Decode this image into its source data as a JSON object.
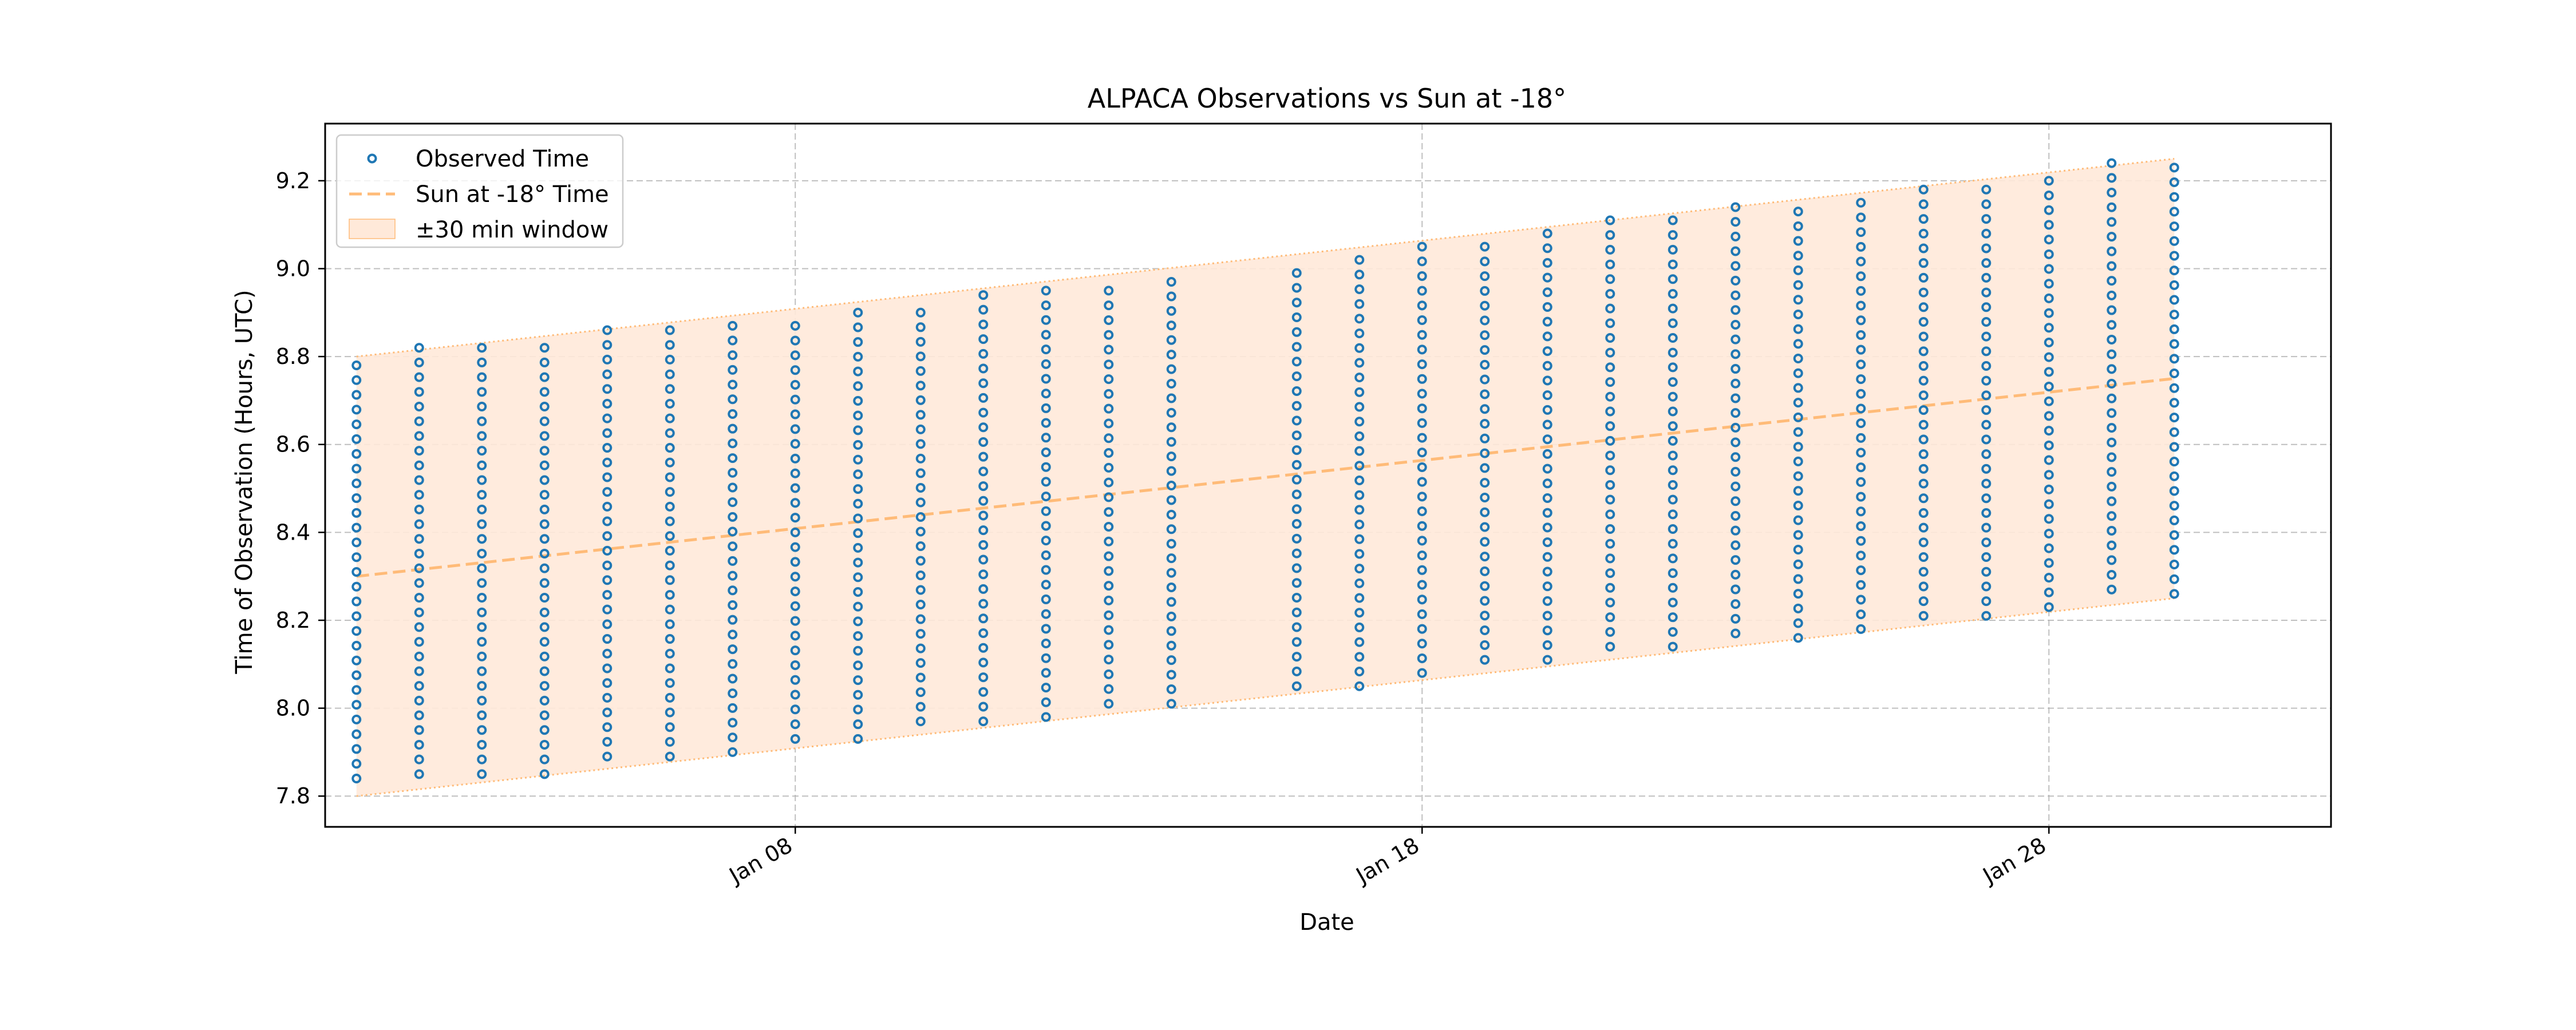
{
  "chart_data": {
    "type": "scatter",
    "title": "ALPACA Observations vs Sun at -18°",
    "xlabel": "Date",
    "ylabel": "Time of Observation (Hours, UTC)",
    "x_axis_type": "date",
    "xlim": [
      "2025-01-00T12",
      "2025-01-32T12"
    ],
    "ylim": [
      7.73,
      9.33
    ],
    "x_ticks": [
      {
        "date": "2025-01-08",
        "label": "Jan 08"
      },
      {
        "date": "2025-01-18",
        "label": "Jan 18"
      },
      {
        "date": "2025-01-28",
        "label": "Jan 28"
      }
    ],
    "y_ticks": [
      {
        "value": 7.8,
        "label": "7.8"
      },
      {
        "value": 8.0,
        "label": "8.0"
      },
      {
        "value": 8.2,
        "label": "8.2"
      },
      {
        "value": 8.4,
        "label": "8.4"
      },
      {
        "value": 8.6,
        "label": "8.6"
      },
      {
        "value": 8.8,
        "label": "8.8"
      },
      {
        "value": 9.0,
        "label": "9.0"
      },
      {
        "value": 9.2,
        "label": "9.2"
      }
    ],
    "grid": true,
    "legend_position": "top-left",
    "window_half_width_hours": 0.5,
    "observation_cadence_hours": 0.0333,
    "series": [
      {
        "name": "Observed Time",
        "kind": "scatter",
        "marker": "hollow-circle",
        "color": "#1f77b4",
        "nights": [
          {
            "date": "2025-01-01",
            "start": 7.84,
            "end": 8.78
          },
          {
            "date": "2025-01-02",
            "start": 7.85,
            "end": 8.82
          },
          {
            "date": "2025-01-03",
            "start": 7.85,
            "end": 8.82
          },
          {
            "date": "2025-01-04",
            "start": 7.85,
            "end": 8.82
          },
          {
            "date": "2025-01-05",
            "start": 7.89,
            "end": 8.86
          },
          {
            "date": "2025-01-06",
            "start": 7.89,
            "end": 8.86
          },
          {
            "date": "2025-01-07",
            "start": 7.9,
            "end": 8.87
          },
          {
            "date": "2025-01-08",
            "start": 7.93,
            "end": 8.87
          },
          {
            "date": "2025-01-09",
            "start": 7.93,
            "end": 8.9
          },
          {
            "date": "2025-01-10",
            "start": 7.97,
            "end": 8.9
          },
          {
            "date": "2025-01-11",
            "start": 7.97,
            "end": 8.94
          },
          {
            "date": "2025-01-12",
            "start": 7.98,
            "end": 8.95
          },
          {
            "date": "2025-01-13",
            "start": 8.01,
            "end": 8.95
          },
          {
            "date": "2025-01-14",
            "start": 8.01,
            "end": 8.97
          },
          {
            "date": "2025-01-16",
            "start": 8.05,
            "end": 8.99
          },
          {
            "date": "2025-01-17",
            "start": 8.05,
            "end": 9.02
          },
          {
            "date": "2025-01-18",
            "start": 8.08,
            "end": 9.05
          },
          {
            "date": "2025-01-19",
            "start": 8.11,
            "end": 9.05
          },
          {
            "date": "2025-01-20",
            "start": 8.11,
            "end": 9.08
          },
          {
            "date": "2025-01-21",
            "start": 8.14,
            "end": 9.11
          },
          {
            "date": "2025-01-22",
            "start": 8.14,
            "end": 9.11
          },
          {
            "date": "2025-01-23",
            "start": 8.17,
            "end": 9.14
          },
          {
            "date": "2025-01-24",
            "start": 8.16,
            "end": 9.13
          },
          {
            "date": "2025-01-25",
            "start": 8.18,
            "end": 9.15
          },
          {
            "date": "2025-01-26",
            "start": 8.21,
            "end": 9.18
          },
          {
            "date": "2025-01-27",
            "start": 8.21,
            "end": 9.18
          },
          {
            "date": "2025-01-28",
            "start": 8.23,
            "end": 9.2
          },
          {
            "date": "2025-01-29",
            "start": 8.27,
            "end": 9.24
          },
          {
            "date": "2025-01-30",
            "start": 8.26,
            "end": 9.23
          }
        ]
      },
      {
        "name": "Sun at -18° Time",
        "kind": "line",
        "style": "dashed",
        "color": "#ffbb78",
        "x": [
          "2025-01-01",
          "2025-01-30"
        ],
        "y": [
          8.3,
          8.75
        ]
      },
      {
        "name": "±30 min window",
        "kind": "band",
        "color": "#ffe9d9",
        "edge_color": "#ffbb78"
      }
    ]
  }
}
